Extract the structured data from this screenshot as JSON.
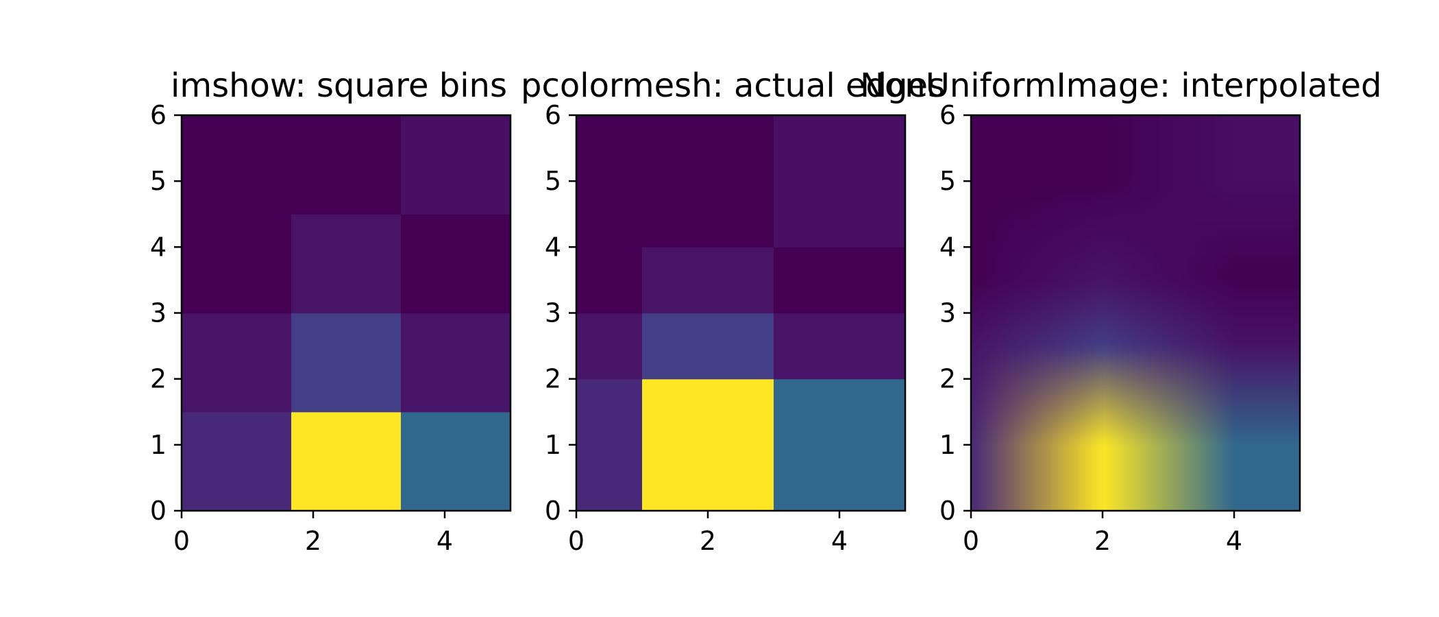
{
  "chart_data": [
    {
      "type": "heatmap",
      "title": "imshow: square bins",
      "xlim": [
        0,
        5
      ],
      "ylim": [
        0,
        6
      ],
      "xticks": [
        "0",
        "2",
        "4"
      ],
      "yticks": [
        "0",
        "1",
        "2",
        "3",
        "4",
        "5",
        "6"
      ],
      "x_edges": [
        0,
        1.667,
        3.333,
        5
      ],
      "y_edges": [
        0,
        1.5,
        3,
        4.5,
        6
      ],
      "grid": false,
      "rows": [
        [
          "#482878",
          "#fde725",
          "#31688e"
        ],
        [
          "#481467",
          "#433e85",
          "#481467"
        ],
        [
          "#440154",
          "#481467",
          "#440154"
        ],
        [
          "#440154",
          "#440154",
          "#470e61"
        ]
      ]
    },
    {
      "type": "heatmap",
      "title": "pcolormesh: actual edges",
      "xlim": [
        0,
        5
      ],
      "ylim": [
        0,
        6
      ],
      "xticks": [
        "0",
        "2",
        "4"
      ],
      "yticks": [
        "0",
        "1",
        "2",
        "3",
        "4",
        "5",
        "6"
      ],
      "x_edges": [
        0,
        1,
        3,
        5
      ],
      "y_edges": [
        0,
        2,
        3,
        4,
        6
      ],
      "grid": false,
      "rows": [
        [
          "#482878",
          "#fde725",
          "#31688e"
        ],
        [
          "#481467",
          "#433e85",
          "#481467"
        ],
        [
          "#440154",
          "#481467",
          "#440154"
        ],
        [
          "#440154",
          "#440154",
          "#470e61"
        ]
      ]
    },
    {
      "type": "heatmap",
      "title": "NonUniformImage: interpolated",
      "xlim": [
        0,
        5
      ],
      "ylim": [
        0,
        6
      ],
      "xticks": [
        "0",
        "2",
        "4"
      ],
      "yticks": [
        "0",
        "1",
        "2",
        "3",
        "4",
        "5",
        "6"
      ],
      "x_centers": [
        0,
        2,
        4
      ],
      "y_centers": [
        1,
        2.5,
        3.5,
        5
      ],
      "interpolation": "bilinear",
      "grid": false,
      "rows": [
        [
          "#482878",
          "#fde725",
          "#31688e"
        ],
        [
          "#481467",
          "#433e85",
          "#481467"
        ],
        [
          "#440154",
          "#481467",
          "#440154"
        ],
        [
          "#440154",
          "#440154",
          "#470e61"
        ]
      ]
    }
  ]
}
